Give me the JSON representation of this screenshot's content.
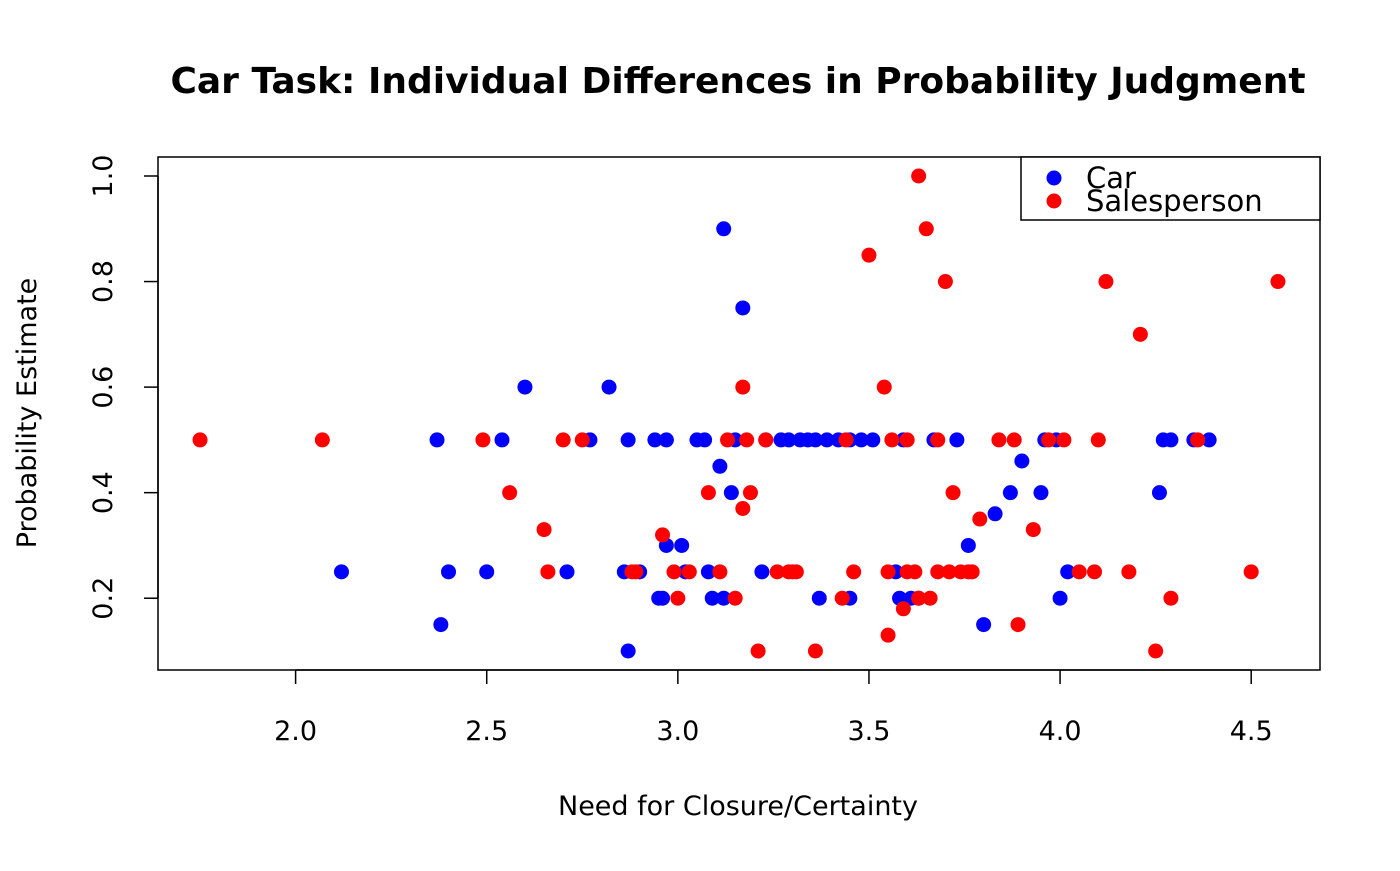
{
  "chart_data": {
    "type": "scatter",
    "title": "Car Task: Individual Differences in Probability Judgment",
    "xlabel": "Need for Closure/Certainty",
    "ylabel": "Probability Estimate",
    "xlim": [
      1.64,
      4.68
    ],
    "ylim": [
      0.064,
      1.036
    ],
    "x_ticks": [
      "2.0",
      "2.5",
      "3.0",
      "3.5",
      "4.0",
      "4.5"
    ],
    "y_ticks": [
      "0.2",
      "0.4",
      "0.6",
      "0.8",
      "1.0"
    ],
    "grid": false,
    "legend_position": "top-right",
    "series": [
      {
        "name": "Car",
        "color": "#0000ff",
        "points": [
          [
            2.12,
            0.25
          ],
          [
            2.37,
            0.5
          ],
          [
            2.38,
            0.15
          ],
          [
            2.4,
            0.25
          ],
          [
            2.5,
            0.25
          ],
          [
            2.54,
            0.5
          ],
          [
            2.6,
            0.6
          ],
          [
            2.71,
            0.25
          ],
          [
            2.77,
            0.5
          ],
          [
            2.82,
            0.6
          ],
          [
            2.86,
            0.25
          ],
          [
            2.87,
            0.5
          ],
          [
            2.87,
            0.1
          ],
          [
            2.9,
            0.25
          ],
          [
            2.94,
            0.5
          ],
          [
            2.95,
            0.2
          ],
          [
            2.96,
            0.2
          ],
          [
            2.97,
            0.3
          ],
          [
            2.97,
            0.5
          ],
          [
            3.01,
            0.3
          ],
          [
            3.02,
            0.25
          ],
          [
            3.05,
            0.5
          ],
          [
            3.07,
            0.5
          ],
          [
            3.08,
            0.25
          ],
          [
            3.09,
            0.2
          ],
          [
            3.11,
            0.45
          ],
          [
            3.12,
            0.9
          ],
          [
            3.12,
            0.2
          ],
          [
            3.14,
            0.4
          ],
          [
            3.15,
            0.5
          ],
          [
            3.17,
            0.75
          ],
          [
            3.22,
            0.25
          ],
          [
            3.23,
            0.5
          ],
          [
            3.27,
            0.5
          ],
          [
            3.29,
            0.5
          ],
          [
            3.32,
            0.5
          ],
          [
            3.34,
            0.5
          ],
          [
            3.36,
            0.5
          ],
          [
            3.37,
            0.2
          ],
          [
            3.39,
            0.5
          ],
          [
            3.42,
            0.5
          ],
          [
            3.45,
            0.5
          ],
          [
            3.45,
            0.2
          ],
          [
            3.48,
            0.5
          ],
          [
            3.51,
            0.5
          ],
          [
            3.57,
            0.25
          ],
          [
            3.58,
            0.2
          ],
          [
            3.59,
            0.5
          ],
          [
            3.61,
            0.2
          ],
          [
            3.63,
            0.2
          ],
          [
            3.67,
            0.5
          ],
          [
            3.73,
            0.5
          ],
          [
            3.76,
            0.3
          ],
          [
            3.8,
            0.15
          ],
          [
            3.83,
            0.36
          ],
          [
            3.87,
            0.4
          ],
          [
            3.9,
            0.46
          ],
          [
            3.95,
            0.4
          ],
          [
            3.96,
            0.5
          ],
          [
            3.99,
            0.5
          ],
          [
            4.0,
            0.2
          ],
          [
            4.02,
            0.25
          ],
          [
            4.26,
            0.4
          ],
          [
            4.27,
            0.5
          ],
          [
            4.29,
            0.5
          ],
          [
            4.35,
            0.5
          ],
          [
            4.39,
            0.5
          ]
        ]
      },
      {
        "name": "Salesperson",
        "color": "#ff0000",
        "points": [
          [
            1.75,
            0.5
          ],
          [
            2.07,
            0.5
          ],
          [
            2.49,
            0.5
          ],
          [
            2.56,
            0.4
          ],
          [
            2.65,
            0.33
          ],
          [
            2.66,
            0.25
          ],
          [
            2.7,
            0.5
          ],
          [
            2.75,
            0.5
          ],
          [
            2.88,
            0.25
          ],
          [
            2.89,
            0.25
          ],
          [
            2.96,
            0.32
          ],
          [
            2.99,
            0.25
          ],
          [
            3.0,
            0.2
          ],
          [
            3.03,
            0.25
          ],
          [
            3.08,
            0.4
          ],
          [
            3.11,
            0.25
          ],
          [
            3.13,
            0.5
          ],
          [
            3.15,
            0.2
          ],
          [
            3.17,
            0.6
          ],
          [
            3.17,
            0.37
          ],
          [
            3.18,
            0.5
          ],
          [
            3.19,
            0.4
          ],
          [
            3.21,
            0.1
          ],
          [
            3.23,
            0.5
          ],
          [
            3.26,
            0.25
          ],
          [
            3.29,
            0.25
          ],
          [
            3.3,
            0.25
          ],
          [
            3.31,
            0.25
          ],
          [
            3.36,
            0.1
          ],
          [
            3.43,
            0.2
          ],
          [
            3.44,
            0.5
          ],
          [
            3.46,
            0.25
          ],
          [
            3.5,
            0.85
          ],
          [
            3.54,
            0.6
          ],
          [
            3.55,
            0.13
          ],
          [
            3.55,
            0.25
          ],
          [
            3.56,
            0.5
          ],
          [
            3.59,
            0.18
          ],
          [
            3.6,
            0.25
          ],
          [
            3.6,
            0.5
          ],
          [
            3.62,
            0.25
          ],
          [
            3.63,
            1.0
          ],
          [
            3.63,
            0.2
          ],
          [
            3.65,
            0.9
          ],
          [
            3.66,
            0.2
          ],
          [
            3.68,
            0.25
          ],
          [
            3.68,
            0.5
          ],
          [
            3.7,
            0.8
          ],
          [
            3.71,
            0.25
          ],
          [
            3.72,
            0.4
          ],
          [
            3.74,
            0.25
          ],
          [
            3.76,
            0.25
          ],
          [
            3.77,
            0.25
          ],
          [
            3.79,
            0.35
          ],
          [
            3.84,
            0.5
          ],
          [
            3.88,
            0.5
          ],
          [
            3.89,
            0.15
          ],
          [
            3.93,
            0.33
          ],
          [
            3.97,
            0.5
          ],
          [
            4.01,
            0.5
          ],
          [
            4.05,
            0.25
          ],
          [
            4.09,
            0.25
          ],
          [
            4.1,
            0.5
          ],
          [
            4.12,
            0.8
          ],
          [
            4.18,
            0.25
          ],
          [
            4.21,
            0.7
          ],
          [
            4.25,
            0.1
          ],
          [
            4.29,
            0.2
          ],
          [
            4.36,
            0.5
          ],
          [
            4.5,
            0.25
          ],
          [
            4.57,
            0.8
          ]
        ]
      }
    ]
  }
}
